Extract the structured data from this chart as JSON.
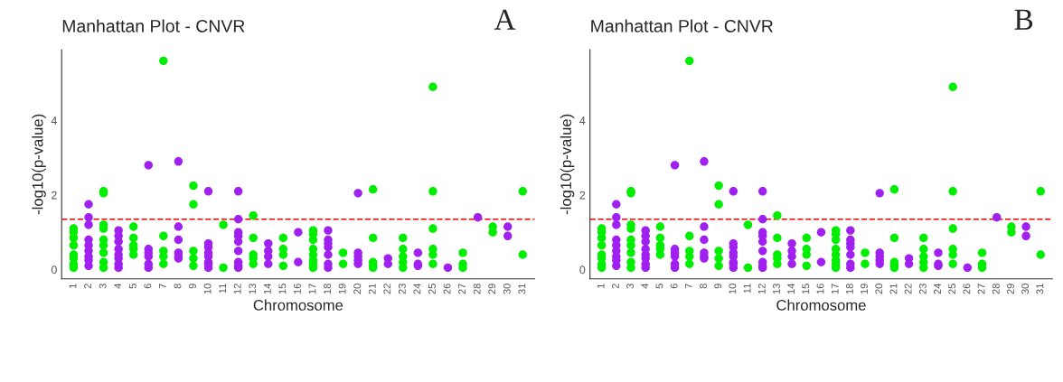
{
  "chart_data": [
    {
      "type": "scatter",
      "title": "Manhattan Plot - CNVR",
      "xlabel": "Chromosome",
      "ylabel": "-log10(p-value)",
      "annotations": [
        "A"
      ],
      "categories": [
        "1",
        "2",
        "3",
        "4",
        "5",
        "6",
        "7",
        "8",
        "9",
        "10",
        "11",
        "12",
        "13",
        "14",
        "15",
        "16",
        "17",
        "18",
        "19",
        "20",
        "21",
        "22",
        "23",
        "24",
        "25",
        "26",
        "27",
        "28",
        "29",
        "30",
        "31"
      ],
      "series": [
        {
          "color": "#00ee00",
          "x": [
            "1",
            "1",
            "1",
            "1",
            "1",
            "1",
            "1",
            "1",
            "3",
            "3",
            "3",
            "3",
            "3",
            "3",
            "3",
            "3",
            "3",
            "5",
            "5",
            "5",
            "5",
            "5",
            "7",
            "7",
            "7",
            "7",
            "7",
            "9",
            "9",
            "9",
            "9",
            "9",
            "11",
            "11",
            "13",
            "13",
            "13",
            "13",
            "13",
            "15",
            "15",
            "15",
            "15",
            "17",
            "17",
            "17",
            "17",
            "17",
            "17",
            "17",
            "17",
            "19",
            "19",
            "21",
            "21",
            "21",
            "21",
            "21",
            "23",
            "23",
            "23",
            "23",
            "23",
            "25",
            "25",
            "25",
            "25",
            "25",
            "25",
            "27",
            "27",
            "27",
            "29",
            "29",
            "31",
            "31"
          ],
          "values": [
            0.05,
            0.15,
            0.3,
            0.4,
            0.65,
            0.85,
            1.0,
            1.1,
            0.05,
            0.2,
            0.45,
            0.65,
            0.8,
            1.1,
            1.2,
            2.05,
            2.1,
            0.4,
            0.55,
            0.65,
            0.85,
            1.15,
            0.15,
            0.35,
            0.5,
            0.9,
            5.6,
            0.1,
            0.3,
            0.5,
            1.75,
            2.25,
            0.05,
            1.2,
            0.15,
            0.3,
            0.4,
            0.85,
            1.45,
            0.1,
            0.4,
            0.55,
            0.85,
            0.05,
            0.15,
            0.25,
            0.4,
            0.55,
            0.8,
            0.95,
            1.05,
            0.15,
            0.45,
            0.05,
            0.1,
            0.2,
            0.85,
            2.15,
            0.05,
            0.2,
            0.35,
            0.55,
            0.85,
            0.15,
            0.4,
            0.55,
            1.1,
            2.1,
            4.9,
            0.05,
            0.15,
            0.45,
            1.0,
            1.15,
            0.4,
            2.1
          ]
        },
        {
          "color": "#a020f0",
          "x": [
            "2",
            "2",
            "2",
            "2",
            "2",
            "2",
            "2",
            "2",
            "2",
            "4",
            "4",
            "4",
            "4",
            "4",
            "4",
            "4",
            "4",
            "6",
            "6",
            "6",
            "6",
            "6",
            "6",
            "8",
            "8",
            "8",
            "8",
            "8",
            "8",
            "10",
            "10",
            "10",
            "10",
            "10",
            "10",
            "10",
            "10",
            "12",
            "12",
            "12",
            "12",
            "12",
            "12",
            "12",
            "12",
            "12",
            "14",
            "14",
            "14",
            "14",
            "16",
            "16",
            "18",
            "18",
            "18",
            "18",
            "18",
            "18",
            "18",
            "20",
            "20",
            "20",
            "20",
            "20",
            "22",
            "22",
            "24",
            "24",
            "24",
            "26",
            "28",
            "30",
            "30"
          ],
          "values": [
            0.1,
            0.25,
            0.35,
            0.5,
            0.65,
            0.8,
            1.2,
            1.4,
            1.75,
            0.05,
            0.15,
            0.3,
            0.4,
            0.55,
            0.75,
            0.9,
            1.05,
            0.05,
            0.15,
            0.35,
            0.45,
            0.55,
            2.8,
            0.3,
            0.35,
            0.45,
            0.8,
            1.15,
            2.9,
            0.05,
            0.15,
            0.2,
            0.35,
            0.45,
            0.6,
            0.7,
            2.1,
            0.05,
            0.1,
            0.2,
            0.5,
            0.75,
            0.9,
            1.0,
            1.35,
            2.1,
            0.15,
            0.35,
            0.5,
            0.7,
            0.2,
            1.0,
            0.05,
            0.15,
            0.4,
            0.6,
            0.7,
            0.8,
            1.05,
            0.15,
            0.25,
            0.35,
            0.45,
            2.05,
            0.15,
            0.3,
            0.1,
            0.15,
            0.45,
            0.05,
            1.4,
            0.9,
            1.15
          ]
        }
      ],
      "ylim": [
        -0.25,
        5.9
      ],
      "yticks": [
        0,
        2,
        4
      ],
      "grid": false,
      "marker": "circle",
      "ref_lines": [
        {
          "axis": "y",
          "value": 1.35,
          "color": "#ff0000",
          "line_style": "dashed"
        }
      ]
    },
    {
      "type": "scatter",
      "title": "Manhattan Plot - CNVR",
      "xlabel": "Chromosome",
      "ylabel": "-log10(p-value)",
      "annotations": [
        "B"
      ],
      "categories": [
        "1",
        "2",
        "3",
        "4",
        "5",
        "6",
        "7",
        "8",
        "9",
        "10",
        "11",
        "12",
        "13",
        "14",
        "15",
        "16",
        "17",
        "18",
        "19",
        "20",
        "21",
        "22",
        "23",
        "24",
        "25",
        "26",
        "27",
        "28",
        "29",
        "30",
        "31"
      ],
      "series": [
        {
          "color": "#00ee00",
          "x": [
            "1",
            "1",
            "1",
            "1",
            "1",
            "1",
            "1",
            "1",
            "3",
            "3",
            "3",
            "3",
            "3",
            "3",
            "3",
            "3",
            "3",
            "5",
            "5",
            "5",
            "5",
            "5",
            "7",
            "7",
            "7",
            "7",
            "7",
            "9",
            "9",
            "9",
            "9",
            "9",
            "11",
            "11",
            "13",
            "13",
            "13",
            "13",
            "13",
            "15",
            "15",
            "15",
            "15",
            "17",
            "17",
            "17",
            "17",
            "17",
            "17",
            "17",
            "17",
            "19",
            "19",
            "21",
            "21",
            "21",
            "21",
            "21",
            "23",
            "23",
            "23",
            "23",
            "23",
            "25",
            "25",
            "25",
            "25",
            "25",
            "25",
            "27",
            "27",
            "27",
            "29",
            "29",
            "31",
            "31"
          ],
          "values": [
            0.05,
            0.15,
            0.3,
            0.4,
            0.65,
            0.85,
            1.0,
            1.1,
            0.05,
            0.2,
            0.45,
            0.65,
            0.8,
            1.1,
            1.2,
            2.05,
            2.1,
            0.4,
            0.55,
            0.65,
            0.85,
            1.15,
            0.15,
            0.35,
            0.5,
            0.9,
            5.6,
            0.1,
            0.3,
            0.5,
            1.75,
            2.25,
            0.05,
            1.2,
            0.15,
            0.3,
            0.4,
            0.85,
            1.45,
            0.1,
            0.4,
            0.55,
            0.85,
            0.05,
            0.15,
            0.25,
            0.4,
            0.55,
            0.8,
            0.95,
            1.05,
            0.15,
            0.45,
            0.05,
            0.1,
            0.2,
            0.85,
            2.15,
            0.05,
            0.2,
            0.35,
            0.55,
            0.85,
            0.15,
            0.4,
            0.55,
            1.1,
            2.1,
            4.9,
            0.05,
            0.15,
            0.45,
            1.0,
            1.15,
            0.4,
            2.1
          ]
        },
        {
          "color": "#a020f0",
          "x": [
            "2",
            "2",
            "2",
            "2",
            "2",
            "2",
            "2",
            "2",
            "2",
            "4",
            "4",
            "4",
            "4",
            "4",
            "4",
            "4",
            "4",
            "6",
            "6",
            "6",
            "6",
            "6",
            "6",
            "8",
            "8",
            "8",
            "8",
            "8",
            "8",
            "10",
            "10",
            "10",
            "10",
            "10",
            "10",
            "10",
            "10",
            "12",
            "12",
            "12",
            "12",
            "12",
            "12",
            "12",
            "12",
            "12",
            "14",
            "14",
            "14",
            "14",
            "16",
            "16",
            "18",
            "18",
            "18",
            "18",
            "18",
            "18",
            "18",
            "20",
            "20",
            "20",
            "20",
            "20",
            "22",
            "22",
            "24",
            "24",
            "24",
            "26",
            "28",
            "30",
            "30"
          ],
          "values": [
            0.1,
            0.25,
            0.35,
            0.5,
            0.65,
            0.8,
            1.2,
            1.4,
            1.75,
            0.05,
            0.15,
            0.3,
            0.4,
            0.55,
            0.75,
            0.9,
            1.05,
            0.05,
            0.15,
            0.35,
            0.45,
            0.55,
            2.8,
            0.3,
            0.35,
            0.45,
            0.8,
            1.15,
            2.9,
            0.05,
            0.15,
            0.2,
            0.35,
            0.45,
            0.6,
            0.7,
            2.1,
            0.05,
            0.1,
            0.2,
            0.5,
            0.75,
            0.9,
            1.0,
            1.35,
            2.1,
            0.15,
            0.35,
            0.5,
            0.7,
            0.2,
            1.0,
            0.05,
            0.15,
            0.4,
            0.6,
            0.7,
            0.8,
            1.05,
            0.15,
            0.25,
            0.35,
            0.45,
            2.05,
            0.15,
            0.3,
            0.1,
            0.15,
            0.45,
            0.05,
            1.4,
            0.9,
            1.15
          ]
        }
      ],
      "ylim": [
        -0.25,
        5.9
      ],
      "yticks": [
        0,
        2,
        4
      ],
      "grid": false,
      "marker": "circle",
      "ref_lines": [
        {
          "axis": "y",
          "value": 1.35,
          "color": "#ff0000",
          "line_style": "dashed"
        }
      ]
    }
  ]
}
